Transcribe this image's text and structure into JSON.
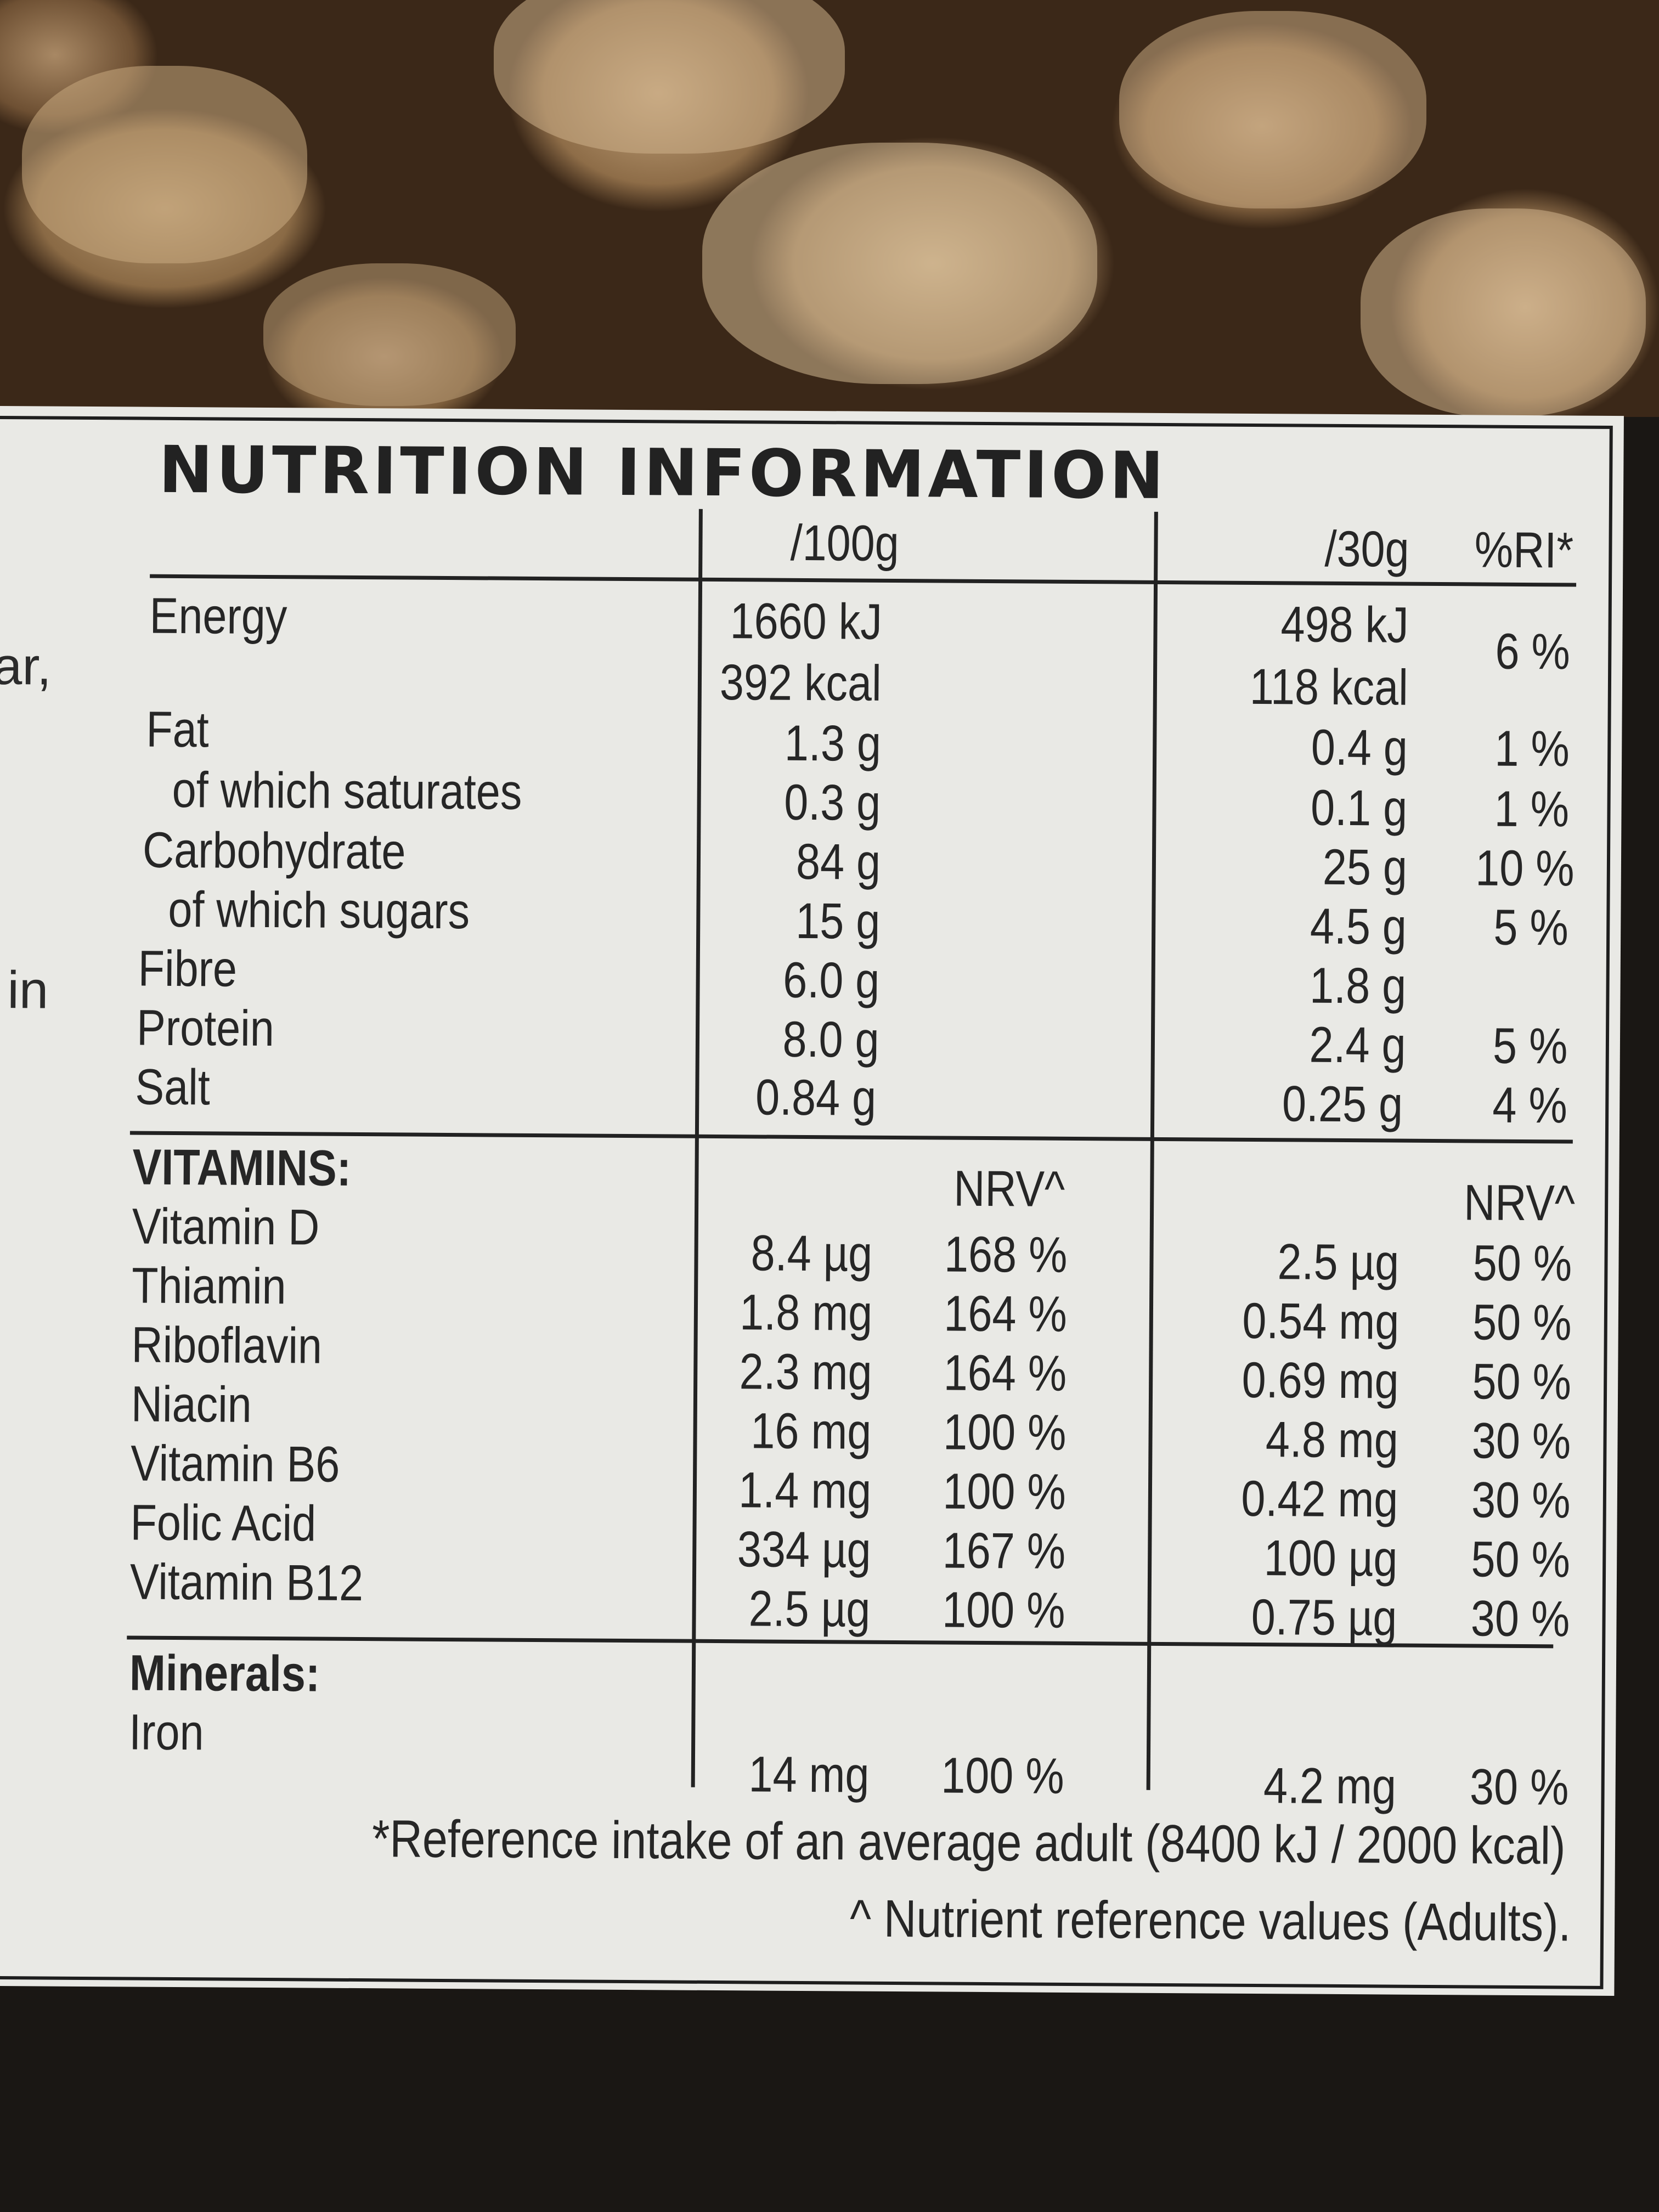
{
  "title": "NUTRITION INFORMATION",
  "left_fragments": [
    "ar,",
    "in"
  ],
  "headers": {
    "per100": "/100g",
    "per30": "/30g",
    "ri": "%RI*"
  },
  "nutrients": [
    {
      "name": "Energy",
      "per100": "1660 kJ",
      "per30": "498 kJ",
      "ri": "6 %"
    },
    {
      "name": "",
      "per100": "392 kcal",
      "per30": "118 kcal",
      "ri": ""
    },
    {
      "name": "Fat",
      "per100": "1.3 g",
      "per30": "0.4 g",
      "ri": "1 %"
    },
    {
      "name": "of which saturates",
      "per100": "0.3 g",
      "per30": "0.1 g",
      "ri": "1 %"
    },
    {
      "name": "Carbohydrate",
      "per100": "84 g",
      "per30": "25 g",
      "ri": "10 %"
    },
    {
      "name": "of which sugars",
      "per100": "15 g",
      "per30": "4.5 g",
      "ri": "5 %"
    },
    {
      "name": "Fibre",
      "per100": "6.0 g",
      "per30": "1.8 g",
      "ri": ""
    },
    {
      "name": "Protein",
      "per100": "8.0 g",
      "per30": "2.4 g",
      "ri": "5 %"
    },
    {
      "name": "Salt",
      "per100": "0.84 g",
      "per30": "0.25 g",
      "ri": "4 %"
    }
  ],
  "vitamins_heading": "VITAMINS:",
  "nrv_label": "NRV^",
  "vitamins": [
    {
      "name": "Vitamin D",
      "per100": "8.4 µg",
      "nrv100": "168 %",
      "per30": "2.5 µg",
      "nrv30": "50 %"
    },
    {
      "name": "Thiamin",
      "per100": "1.8 mg",
      "nrv100": "164 %",
      "per30": "0.54 mg",
      "nrv30": "50 %"
    },
    {
      "name": "Riboflavin",
      "per100": "2.3 mg",
      "nrv100": "164 %",
      "per30": "0.69 mg",
      "nrv30": "50 %"
    },
    {
      "name": "Niacin",
      "per100": "16 mg",
      "nrv100": "100 %",
      "per30": "4.8 mg",
      "nrv30": "30 %"
    },
    {
      "name": "Vitamin B6",
      "per100": "1.4 mg",
      "nrv100": "100 %",
      "per30": "0.42 mg",
      "nrv30": "30 %"
    },
    {
      "name": "Folic Acid",
      "per100": "334 µg",
      "nrv100": "167 %",
      "per30": "100 µg",
      "nrv30": "50 %"
    },
    {
      "name": "Vitamin B12",
      "per100": "2.5 µg",
      "nrv100": "100 %",
      "per30": "0.75 µg",
      "nrv30": "30 %"
    }
  ],
  "minerals_heading": "Minerals:",
  "minerals": [
    {
      "name": "Iron",
      "per100": "14 mg",
      "nrv100": "100 %",
      "per30": "4.2 mg",
      "nrv30": "30 %"
    }
  ],
  "footnotes": [
    "*Reference intake of an average adult (8400 kJ / 2000 kcal)",
    "^ Nutrient reference values (Adults)."
  ]
}
